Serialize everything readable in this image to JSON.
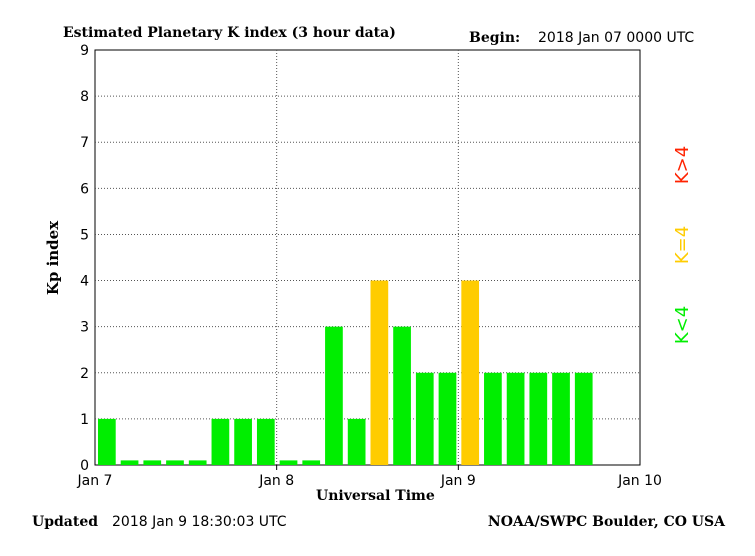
{
  "header": {
    "title": "Estimated Planetary K index (3 hour data)",
    "begin_label": "Begin:",
    "begin_value": "2018 Jan 07 0000 UTC"
  },
  "footer": {
    "updated_label": "Updated",
    "updated_value": "2018 Jan  9 18:30:03 UTC",
    "credit": "NOAA/SWPC Boulder, CO USA"
  },
  "legend": {
    "high": {
      "label": "K>4",
      "color": "#ff2200"
    },
    "equal": {
      "label": "K=4",
      "color": "#ffcc00"
    },
    "low": {
      "label": "K<4",
      "color": "#00ee00"
    }
  },
  "chart_data": {
    "type": "bar",
    "title": "Estimated Planetary K index (3 hour data)",
    "xlabel": "Universal Time",
    "ylabel": "Kp index",
    "ylim": [
      0,
      9
    ],
    "yticks": [
      "0",
      "1",
      "2",
      "3",
      "4",
      "5",
      "6",
      "7",
      "8",
      "9"
    ],
    "xticks": [
      "Jan 7",
      "Jan 8",
      "Jan 9",
      "Jan 10"
    ],
    "grid": true,
    "categories": [
      "Jan 7 00",
      "Jan 7 03",
      "Jan 7 06",
      "Jan 7 09",
      "Jan 7 12",
      "Jan 7 15",
      "Jan 7 18",
      "Jan 7 21",
      "Jan 8 00",
      "Jan 8 03",
      "Jan 8 06",
      "Jan 8 09",
      "Jan 8 12",
      "Jan 8 15",
      "Jan 8 18",
      "Jan 8 21",
      "Jan 9 00",
      "Jan 9 03",
      "Jan 9 06",
      "Jan 9 09",
      "Jan 9 12",
      "Jan 9 15"
    ],
    "values": [
      1,
      0.1,
      0.1,
      0.1,
      0.1,
      1,
      1,
      1,
      0.1,
      0.1,
      3,
      1,
      4,
      3,
      2,
      2,
      4,
      2,
      2,
      2,
      2,
      2
    ],
    "colors": {
      "below": "#00ee00",
      "equal": "#ffcc00",
      "above": "#ff2200"
    }
  }
}
